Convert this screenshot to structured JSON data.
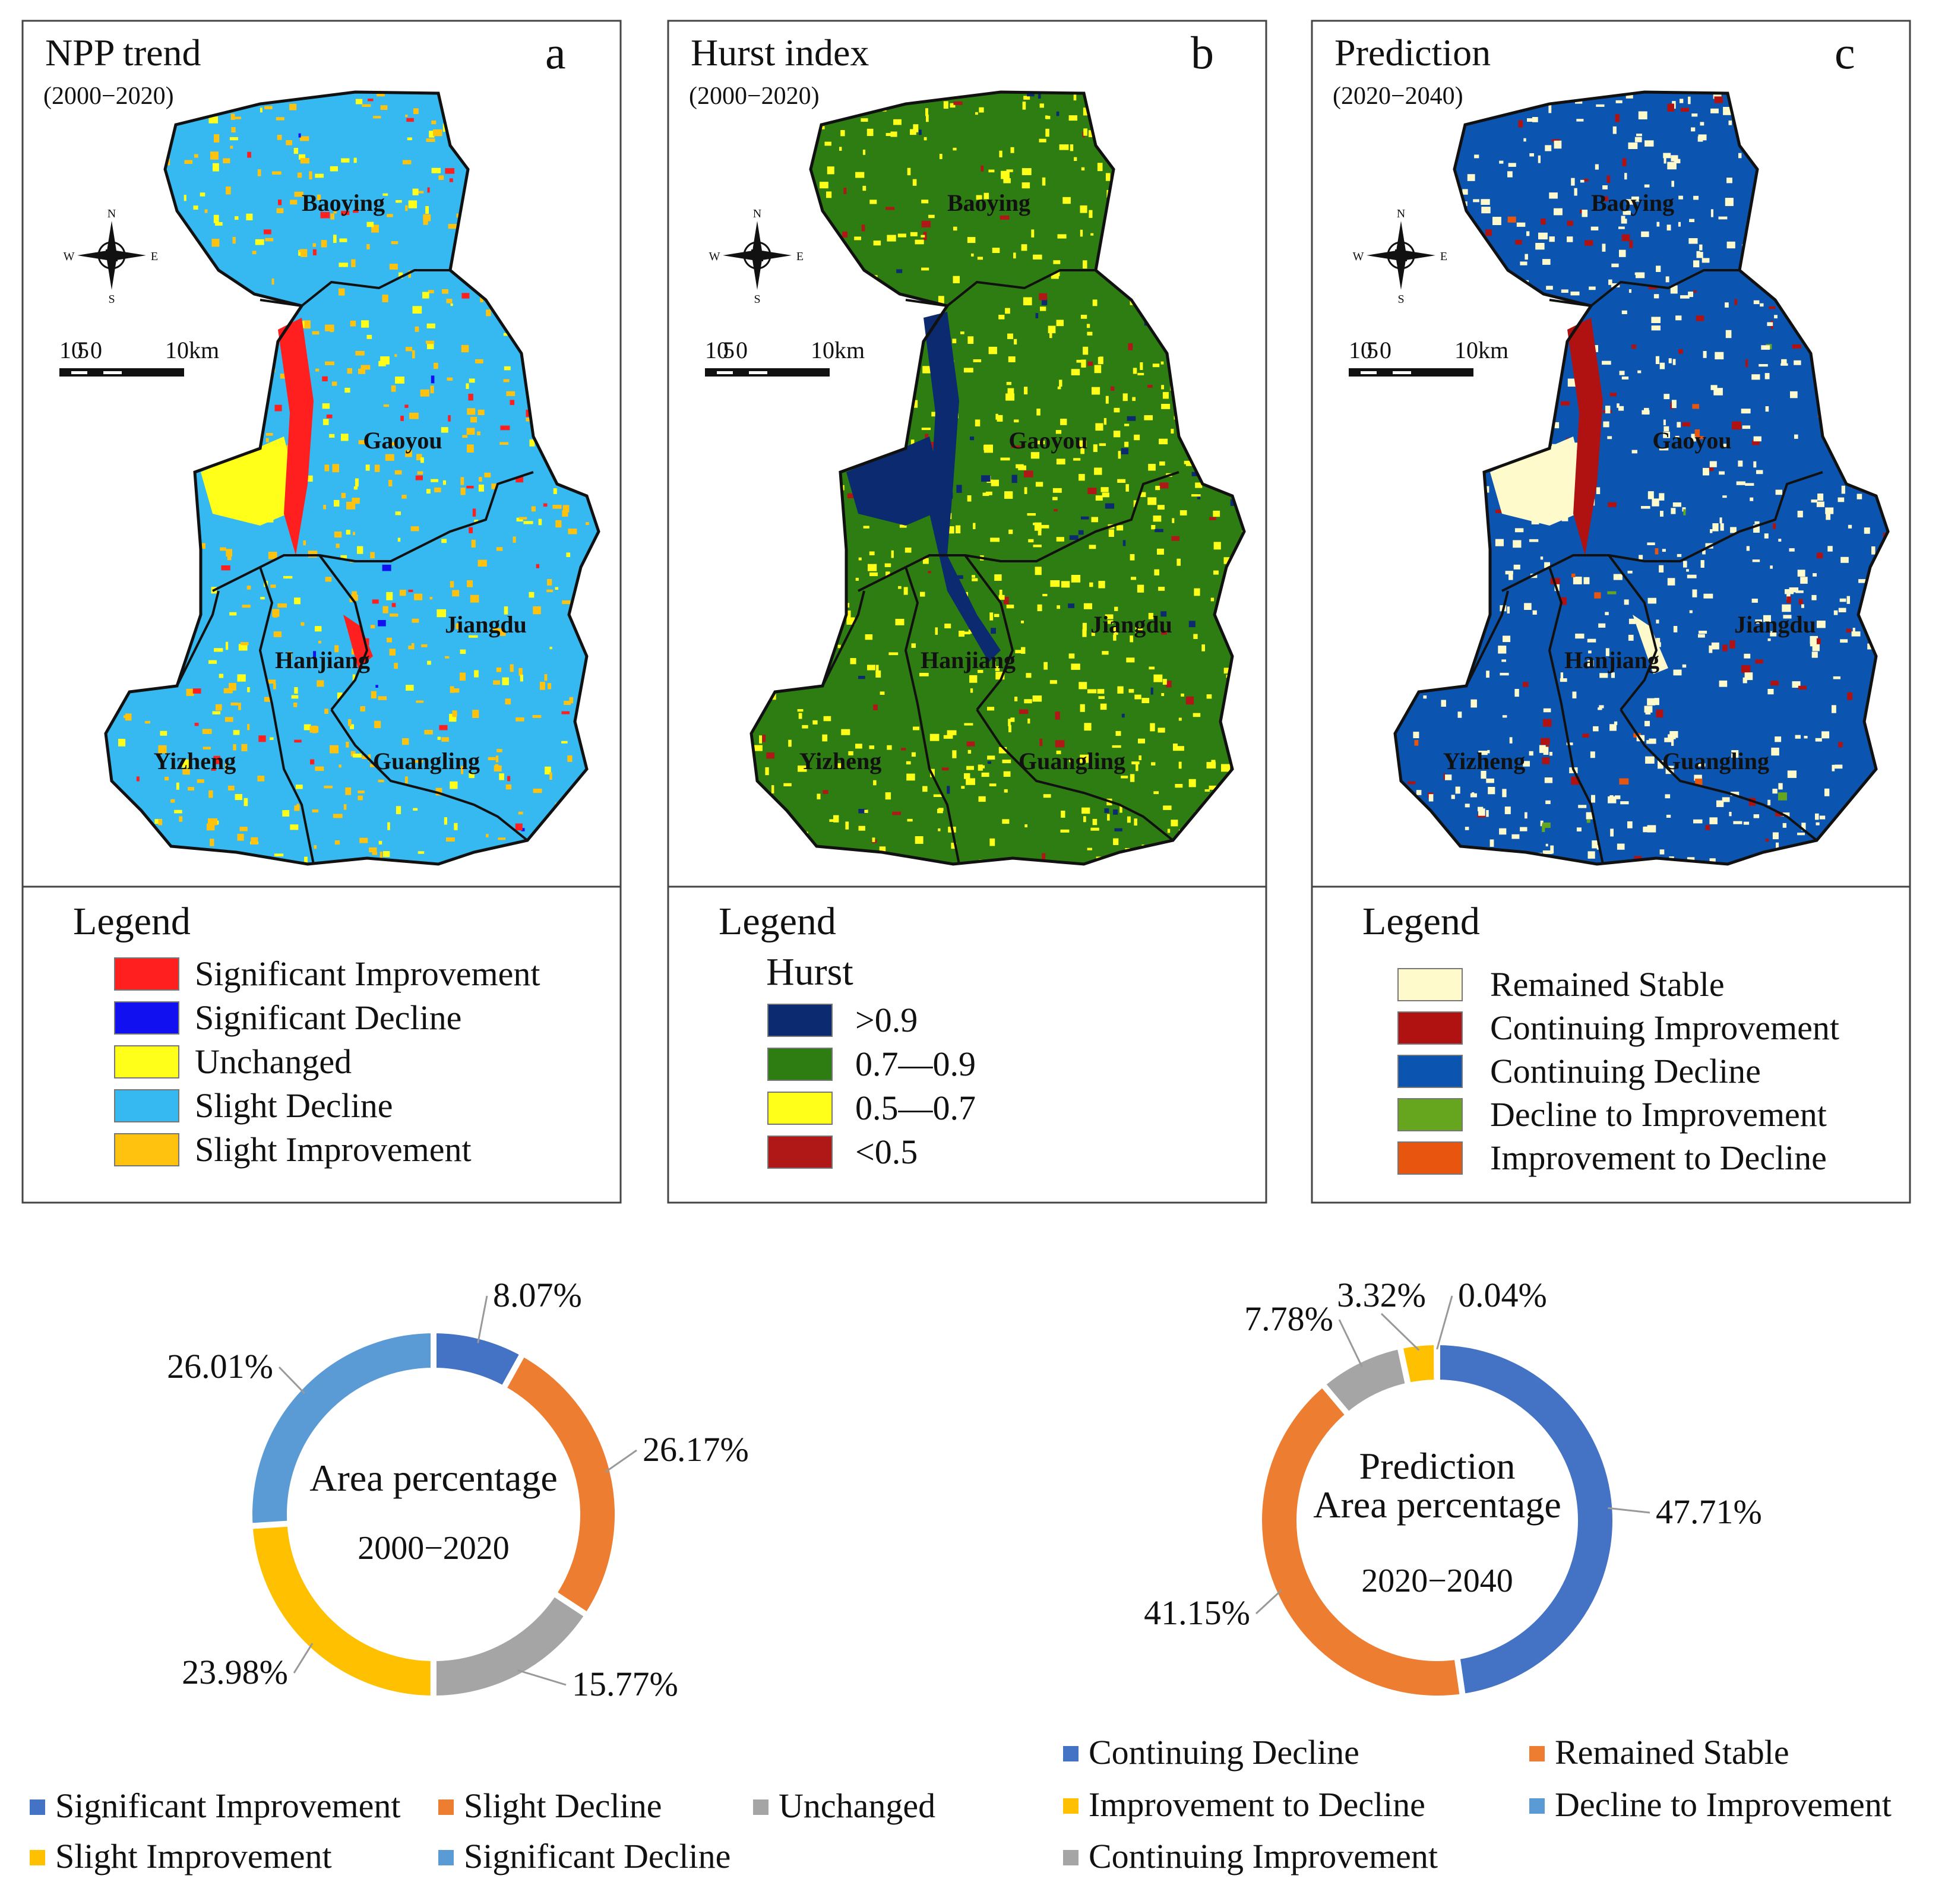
{
  "colors": {
    "sig_improvement": "#ff1f1f",
    "sig_decline": "#1010f0",
    "unchanged": "#ffff19",
    "slight_decline": "#36b8f0",
    "slight_improvement": "#ffc20e",
    "hurst_gt09": "#0b2a6f",
    "hurst_07_09": "#2e7d12",
    "hurst_05_07": "#ffff1a",
    "hurst_lt05": "#b01818",
    "remained_stable": "#fefacb",
    "continuing_improvement": "#b01212",
    "continuing_decline": "#0b55b0",
    "decline_to_improvement": "#66a61e",
    "improvement_to_decline": "#e8550f",
    "donut_blue": "#4472c4",
    "donut_orange": "#ed7d31",
    "donut_gray": "#a5a5a5",
    "donut_yellow": "#ffc000",
    "donut_lightblue": "#5b9bd5"
  },
  "panels": [
    {
      "id": "a",
      "title": "NPP trend",
      "period": "(2000−2020)",
      "letter": "a",
      "legend_title": "Legend",
      "legend_subtitle": "",
      "legend": [
        {
          "label": "Significant Improvement",
          "color": "#ff1f1f"
        },
        {
          "label": "Significant Decline",
          "color": "#1010f0"
        },
        {
          "label": "Unchanged",
          "color": "#ffff19"
        },
        {
          "label": "Slight Decline",
          "color": "#36b8f0"
        },
        {
          "label": "Slight Improvement",
          "color": "#ffc20e"
        }
      ]
    },
    {
      "id": "b",
      "title": "Hurst index",
      "period": "(2000−2020)",
      "letter": "b",
      "legend_title": "Legend",
      "legend_subtitle": "Hurst",
      "legend": [
        {
          "label": ">0.9",
          "color": "#0b2a6f"
        },
        {
          "label": "0.7—0.9",
          "color": "#2e7d12"
        },
        {
          "label": "0.5—0.7",
          "color": "#ffff1a"
        },
        {
          "label": "<0.5",
          "color": "#b01818"
        }
      ]
    },
    {
      "id": "c",
      "title": "Prediction",
      "period": "(2020−2040)",
      "letter": "c",
      "legend_title": "Legend",
      "legend_subtitle": "",
      "legend": [
        {
          "label": "Remained Stable",
          "color": "#fefacb"
        },
        {
          "label": "Continuing Improvement",
          "color": "#b01212"
        },
        {
          "label": "Continuing Decline",
          "color": "#0b55b0"
        },
        {
          "label": "Decline to Improvement",
          "color": "#66a61e"
        },
        {
          "label": "Improvement to Decline",
          "color": "#e8550f"
        }
      ]
    }
  ],
  "counties": [
    "Baoying",
    "Gaoyou",
    "Jiangdu",
    "Hanjiang",
    "Yizheng",
    "Guangling"
  ],
  "compass": {
    "n": "N",
    "s": "S",
    "e": "E",
    "w": "W"
  },
  "scale_bar": {
    "labels": [
      "10",
      "5",
      "0",
      "10km"
    ]
  },
  "chart_data": [
    {
      "type": "pie",
      "variant": "donut",
      "title": "Area percentage",
      "subtitle": "2000−2020",
      "unit": "%",
      "slices": [
        {
          "label": "Significant Improvement",
          "value": 8.07,
          "color": "#4472c4"
        },
        {
          "label": "Slight Decline",
          "value": 26.17,
          "color": "#ed7d31"
        },
        {
          "label": "Unchanged",
          "value": 15.77,
          "color": "#a5a5a5"
        },
        {
          "label": "Slight Improvement",
          "value": 23.98,
          "color": "#ffc000"
        },
        {
          "label": "Significant Decline",
          "value": 26.01,
          "color": "#5b9bd5"
        }
      ],
      "legend_order": [
        "Significant Improvement",
        "Slight Decline",
        "Unchanged",
        "Slight Improvement",
        "Significant Decline"
      ],
      "legend_position": "bottom"
    },
    {
      "type": "pie",
      "variant": "donut",
      "title": "Prediction\nArea percentage",
      "title_lines": [
        "Prediction",
        "Area percentage"
      ],
      "subtitle": "2020−2040",
      "unit": "%",
      "slices": [
        {
          "label": "Continuing Decline",
          "value": 47.71,
          "color": "#4472c4"
        },
        {
          "label": "Remained Stable",
          "value": 41.15,
          "color": "#ed7d31"
        },
        {
          "label": "Continuing Improvement",
          "value": 7.78,
          "color": "#a5a5a5"
        },
        {
          "label": "Improvement to Decline",
          "value": 3.32,
          "color": "#ffc000"
        },
        {
          "label": "Decline to Improvement",
          "value": 0.04,
          "color": "#5b9bd5"
        }
      ],
      "legend_order": [
        "Continuing Decline",
        "Remained Stable",
        "Improvement to Decline",
        "Decline to Improvement",
        "Continuing Improvement"
      ],
      "legend_position": "bottom"
    }
  ]
}
